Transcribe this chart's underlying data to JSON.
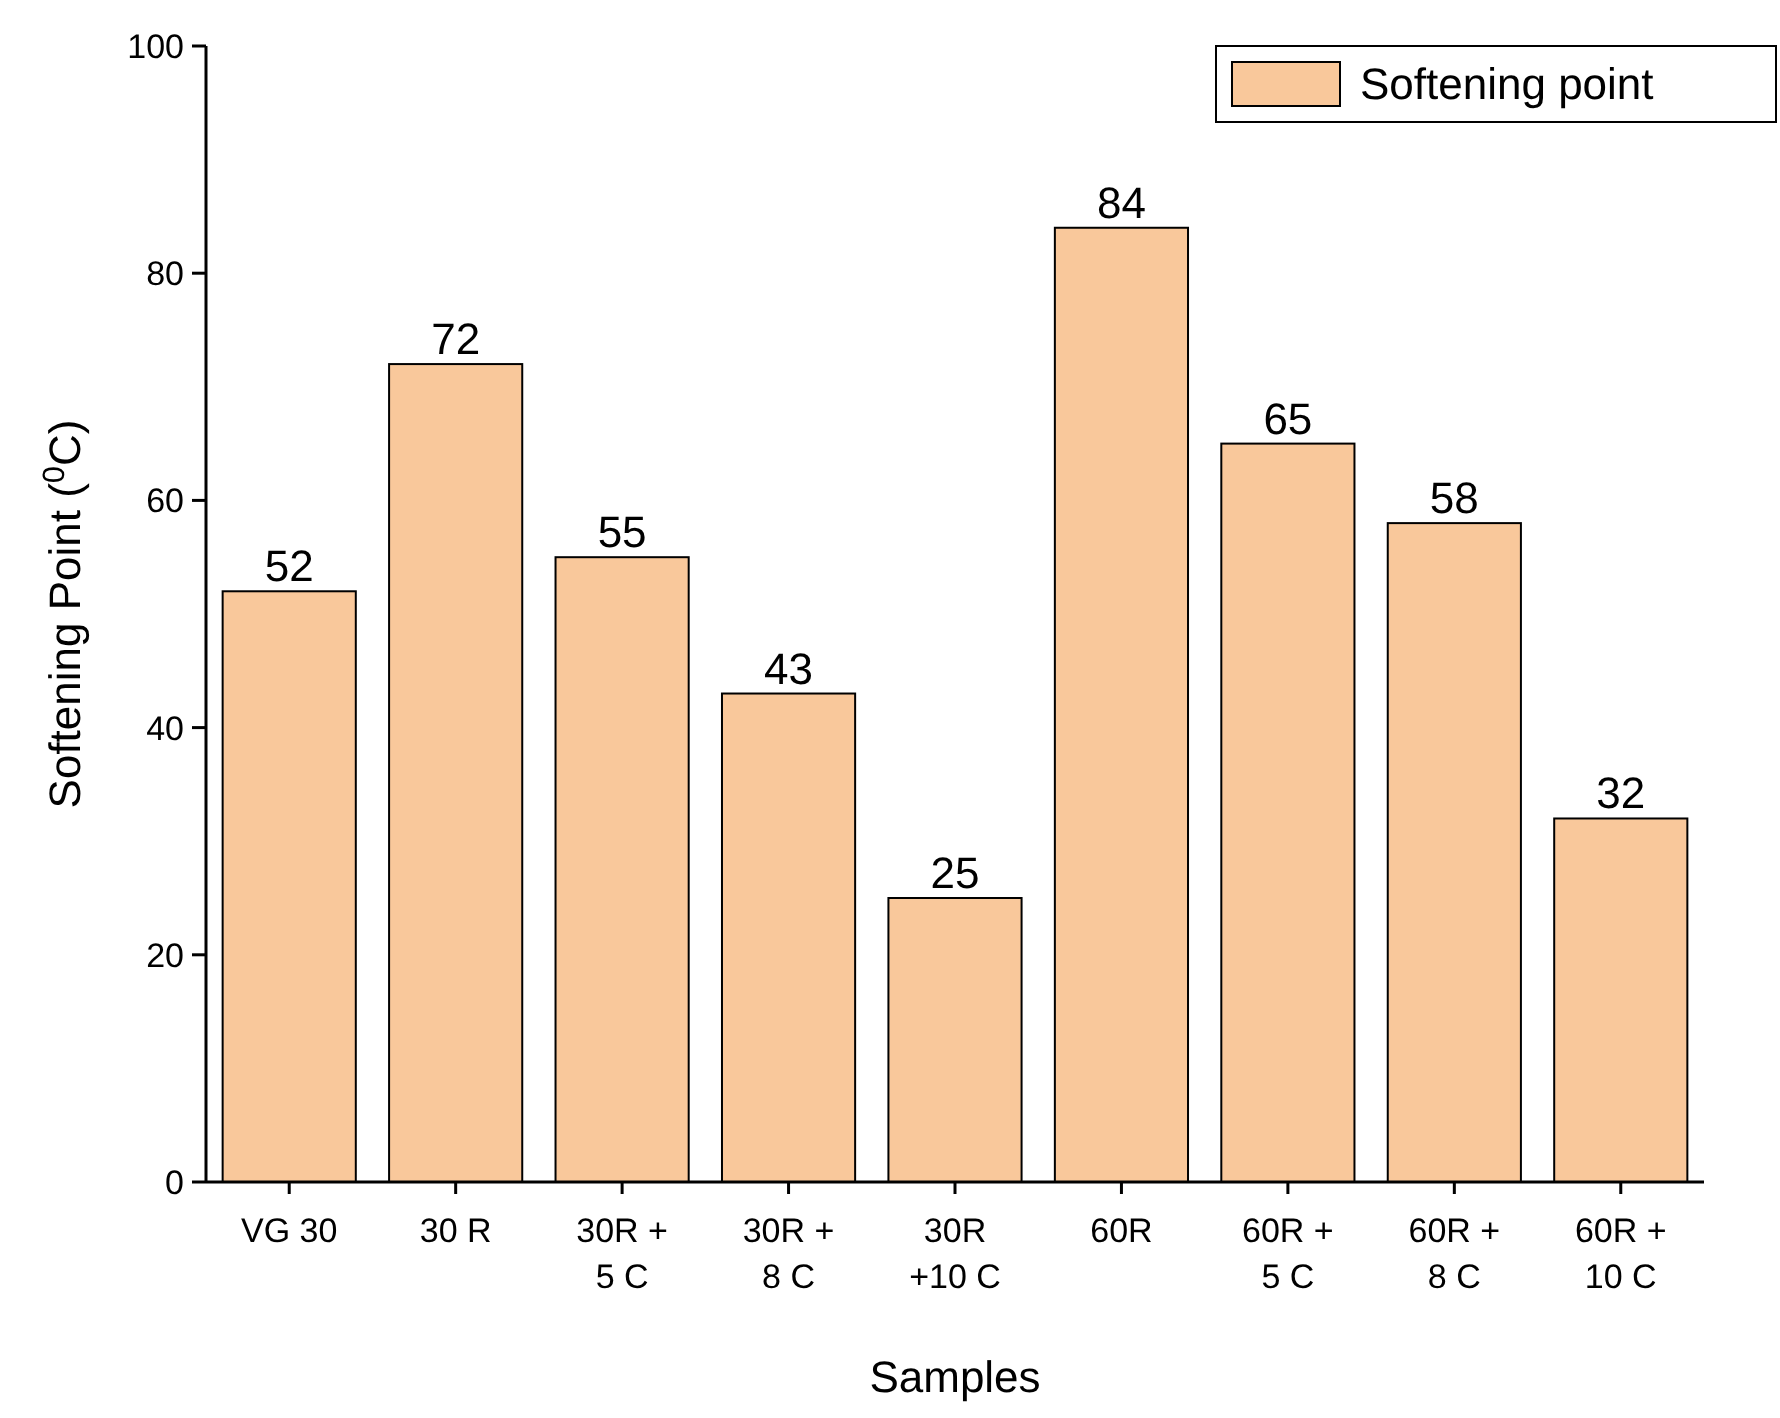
{
  "chart_data": {
    "type": "bar",
    "xlabel": "Samples",
    "ylabel": "Softening Point ($^{0}$C)",
    "categories": [
      "VG 30",
      "30 R",
      "30R +\n5 C",
      "30R +\n8 C",
      "30R\n+10 C",
      "60R",
      "60R +\n5 C",
      "60R +\n8 C",
      "60R +\n10 C"
    ],
    "series": [
      {
        "name": "Softening point",
        "color": "#f9c89b",
        "values": [
          52,
          72,
          55,
          43,
          25,
          84,
          65,
          58,
          32
        ]
      }
    ],
    "ylim": [
      0,
      100
    ],
    "yticks": [
      0,
      20,
      40,
      60,
      80,
      100
    ],
    "data_labels": true,
    "legend": "top right",
    "grid": false
  }
}
